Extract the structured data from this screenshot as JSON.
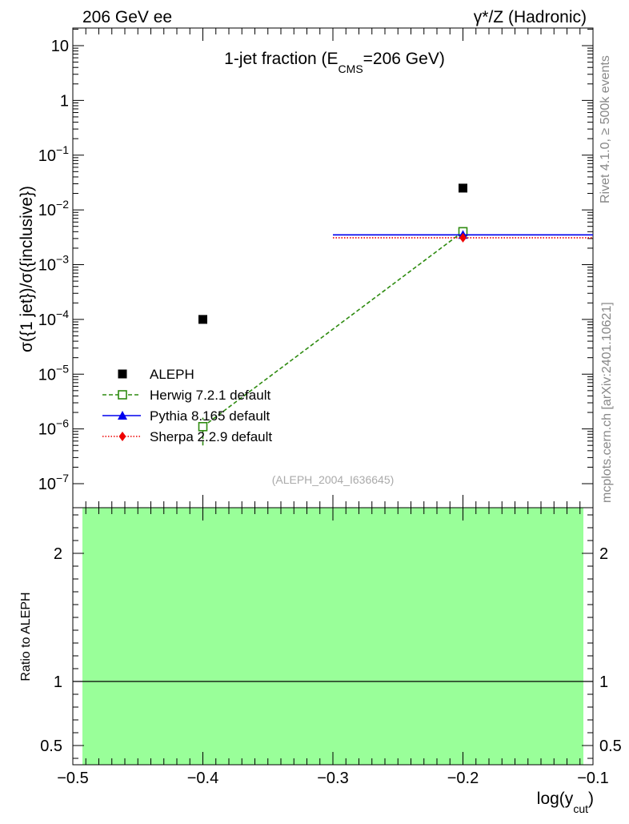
{
  "header": {
    "left": "206 GeV ee",
    "right": "γ*/Z (Hadronic)"
  },
  "side_text": {
    "rivet": "Rivet 4.1.0, ≥ 500k events",
    "mcplots": "mcplots.cern.ch [arXiv:2401.10621]"
  },
  "chart_data": [
    {
      "type": "scatter",
      "panel": "main",
      "title": "1-jet fraction (E",
      "title_sub": "CMS",
      "title_tail": "=206 GeV)",
      "ylabel": "σ({1 jet})/σ({inclusive})",
      "yscale": "log",
      "xlim": [
        -0.5,
        -0.1
      ],
      "ylim": [
        1e-07,
        10
      ],
      "y_ticks": [
        {
          "value": 1e-07,
          "base": "10",
          "exp": "−7"
        },
        {
          "value": 1e-06,
          "base": "10",
          "exp": "−6"
        },
        {
          "value": 1e-05,
          "base": "10",
          "exp": "−5"
        },
        {
          "value": 0.0001,
          "base": "10",
          "exp": "−4"
        },
        {
          "value": 0.001,
          "base": "10",
          "exp": "−3"
        },
        {
          "value": 0.01,
          "base": "10",
          "exp": "−2"
        },
        {
          "value": 0.1,
          "base": "10",
          "exp": "−1"
        },
        {
          "value": 1,
          "base": "1",
          "exp": ""
        },
        {
          "value": 10,
          "base": "10",
          "exp": ""
        }
      ],
      "watermark": "(ALEPH_2004_I636645)",
      "series": [
        {
          "name": "ALEPH",
          "color": "#000000",
          "style": "points",
          "marker": "square-filled",
          "x": [
            -0.4,
            -0.2
          ],
          "y": [
            0.0001,
            0.025
          ]
        },
        {
          "name": "Herwig 7.2.1 default",
          "color": "#2e8b10",
          "style": "dashed",
          "marker": "square-open",
          "x": [
            -0.4,
            -0.2
          ],
          "y": [
            1.1e-06,
            0.004
          ],
          "y_low": [
            5e-07,
            0.0037
          ],
          "y_high": [
            1.6e-06,
            0.0043
          ]
        },
        {
          "name": "Pythia 8.165 default",
          "color": "#0000ee",
          "style": "solid",
          "marker": "triangle-filled",
          "x": [
            -0.2
          ],
          "y": [
            0.0035
          ],
          "x_low": [
            -0.3
          ],
          "x_high": [
            -0.1
          ]
        },
        {
          "name": "Sherpa 2.2.9 default",
          "color": "#ee0000",
          "style": "dotted",
          "marker": "diamond-filled",
          "x": [
            -0.2
          ],
          "y": [
            0.0031
          ],
          "x_low": [
            -0.3
          ],
          "x_high": [
            -0.1
          ]
        }
      ]
    },
    {
      "type": "area",
      "panel": "ratio",
      "xlabel": "log(y",
      "xlabel_sub": "cut",
      "xlabel_tail": ")",
      "ylabel": "Ratio to ALEPH",
      "xlim": [
        -0.5,
        -0.1
      ],
      "ylim": [
        0.35,
        2.35
      ],
      "x_ticks": [
        "−0.5",
        "−0.4",
        "−0.3",
        "−0.2",
        "−0.1"
      ],
      "x_tick_values": [
        -0.5,
        -0.4,
        -0.3,
        -0.2,
        -0.1
      ],
      "y_ticks": [
        {
          "value": 0.5,
          "label": "0.5"
        },
        {
          "value": 1,
          "label": "1"
        },
        {
          "value": 2,
          "label": "2"
        }
      ],
      "band": {
        "x": [
          -0.5,
          -0.1
        ],
        "y_low": 0.35,
        "y_high": 2.35,
        "color": "#99ff99"
      },
      "reference_line": 1
    }
  ]
}
